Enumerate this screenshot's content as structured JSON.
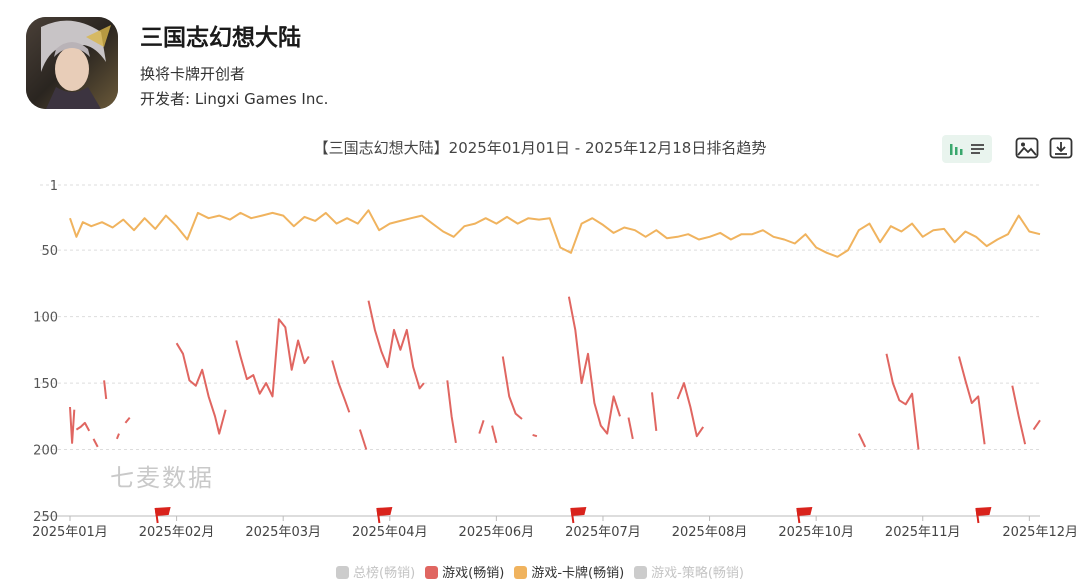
{
  "app": {
    "name": "三国志幻想大陆",
    "subtitle": "换将卡牌开创者",
    "developer": "开发者: Lingxi Games Inc."
  },
  "watermark": "七麦数据",
  "toolbar": {
    "icons": [
      "bar-chart-icon",
      "list-icon",
      "image-export-icon",
      "download-icon"
    ],
    "active_color": "#3aa76d"
  },
  "colors": {
    "game_grossing": "#e06661",
    "card_grossing": "#f0b35e",
    "disabled": "#cccccc",
    "flag": "#d9231c"
  },
  "chart_data": {
    "type": "line",
    "title": "【三国志幻想大陆】2025年01月01日 - 2025年12月18日排名趋势",
    "y_inverted": true,
    "ylim": [
      1,
      250
    ],
    "y_ticks": [
      1,
      50,
      100,
      150,
      200,
      250
    ],
    "y_tick_labels": [
      "1",
      "50",
      "100",
      "150",
      "200",
      "250"
    ],
    "grid": "horizontal dashed",
    "x_tick_labels": [
      "2025年01月",
      "2025年02月",
      "2025年03月",
      "2025年04月",
      "2025年06月",
      "2025年07月",
      "2025年08月",
      "2025年10月",
      "2025年11月",
      "2025年12月"
    ],
    "x_tick_index": [
      0,
      5,
      10,
      15,
      20,
      25,
      30,
      35,
      40,
      45
    ],
    "annotation_flag_index": [
      4.3,
      14.7,
      23.8,
      34.4,
      42.8
    ],
    "legend": [
      {
        "label": "总榜(畅销)",
        "enabled": false,
        "color": "#cccccc"
      },
      {
        "label": "游戏(畅销)",
        "enabled": true,
        "color": "#e06661"
      },
      {
        "label": "游戏-卡牌(畅销)",
        "enabled": true,
        "color": "#f0b35e"
      },
      {
        "label": "游戏-策略(畅销)",
        "enabled": false,
        "color": "#cccccc"
      }
    ],
    "series": [
      {
        "name": "游戏-卡牌(畅销)",
        "color": "#f0b35e",
        "points": [
          [
            0,
            26
          ],
          [
            0.3,
            40
          ],
          [
            0.6,
            29
          ],
          [
            1,
            32
          ],
          [
            1.5,
            29
          ],
          [
            2,
            33
          ],
          [
            2.5,
            27
          ],
          [
            3,
            35
          ],
          [
            3.5,
            26
          ],
          [
            4,
            34
          ],
          [
            4.5,
            24
          ],
          [
            5,
            32
          ],
          [
            5.5,
            42
          ],
          [
            6,
            22
          ],
          [
            6.5,
            26
          ],
          [
            7,
            24
          ],
          [
            7.5,
            27
          ],
          [
            8,
            22
          ],
          [
            8.5,
            26
          ],
          [
            9,
            24
          ],
          [
            9.5,
            22
          ],
          [
            10,
            24
          ],
          [
            10.5,
            32
          ],
          [
            11,
            25
          ],
          [
            11.5,
            28
          ],
          [
            12,
            22
          ],
          [
            12.5,
            30
          ],
          [
            13,
            26
          ],
          [
            13.5,
            30
          ],
          [
            14,
            20
          ],
          [
            14.5,
            35
          ],
          [
            15,
            30
          ],
          [
            15.5,
            28
          ],
          [
            16,
            26
          ],
          [
            16.5,
            24
          ],
          [
            17,
            30
          ],
          [
            17.5,
            36
          ],
          [
            18,
            40
          ],
          [
            18.5,
            32
          ],
          [
            19,
            30
          ],
          [
            19.5,
            26
          ],
          [
            20,
            30
          ],
          [
            20.5,
            25
          ],
          [
            21,
            30
          ],
          [
            21.5,
            26
          ],
          [
            22,
            27
          ],
          [
            22.5,
            26
          ],
          [
            23,
            48
          ],
          [
            23.5,
            52
          ],
          [
            24,
            30
          ],
          [
            24.5,
            26
          ],
          [
            25,
            31
          ],
          [
            25.5,
            37
          ],
          [
            26,
            33
          ],
          [
            26.5,
            35
          ],
          [
            27,
            40
          ],
          [
            27.5,
            35
          ],
          [
            28,
            41
          ],
          [
            28.5,
            40
          ],
          [
            29,
            38
          ],
          [
            29.5,
            42
          ],
          [
            30,
            40
          ],
          [
            30.5,
            37
          ],
          [
            31,
            42
          ],
          [
            31.5,
            38
          ],
          [
            32,
            38
          ],
          [
            32.5,
            35
          ],
          [
            33,
            40
          ],
          [
            33.5,
            42
          ],
          [
            34,
            45
          ],
          [
            34.5,
            38
          ],
          [
            35,
            48
          ],
          [
            35.5,
            52
          ],
          [
            36,
            55
          ],
          [
            36.5,
            50
          ],
          [
            37,
            35
          ],
          [
            37.5,
            30
          ],
          [
            38,
            44
          ],
          [
            38.5,
            32
          ],
          [
            39,
            36
          ],
          [
            39.5,
            30
          ],
          [
            40,
            40
          ],
          [
            40.5,
            35
          ],
          [
            41,
            34
          ],
          [
            41.5,
            44
          ],
          [
            42,
            36
          ],
          [
            42.5,
            40
          ],
          [
            43,
            47
          ],
          [
            43.5,
            42
          ],
          [
            44,
            38
          ],
          [
            44.5,
            24
          ],
          [
            45,
            36
          ],
          [
            45.5,
            38
          ]
        ]
      },
      {
        "name": "游戏(畅销)",
        "color": "#e06661",
        "segments": [
          [
            [
              0,
              168
            ],
            [
              0.1,
              195
            ],
            [
              0.2,
              170
            ]
          ],
          [
            [
              0.3,
              185
            ],
            [
              0.5,
              183
            ],
            [
              0.7,
              180
            ],
            [
              0.9,
              186
            ]
          ],
          [
            [
              1.1,
              192
            ],
            [
              1.3,
              198
            ]
          ],
          [
            [
              1.6,
              148
            ],
            [
              1.7,
              162
            ]
          ],
          [
            [
              2.2,
              192
            ],
            [
              2.3,
              188
            ]
          ],
          [
            [
              2.6,
              180
            ],
            [
              2.8,
              176
            ]
          ],
          [
            [
              5,
              120
            ],
            [
              5.3,
              128
            ],
            [
              5.6,
              148
            ],
            [
              5.9,
              152
            ],
            [
              6.2,
              140
            ],
            [
              6.5,
              160
            ],
            [
              6.8,
              175
            ],
            [
              7.0,
              188
            ],
            [
              7.3,
              170
            ]
          ],
          [
            [
              7.8,
              118
            ],
            [
              8.0,
              130
            ],
            [
              8.3,
              147
            ],
            [
              8.6,
              144
            ],
            [
              8.9,
              158
            ],
            [
              9.2,
              150
            ],
            [
              9.5,
              160
            ],
            [
              9.8,
              102
            ],
            [
              10.1,
              108
            ],
            [
              10.4,
              140
            ],
            [
              10.7,
              118
            ],
            [
              11.0,
              135
            ],
            [
              11.2,
              130
            ]
          ],
          [
            [
              12.3,
              133
            ],
            [
              12.6,
              150
            ],
            [
              12.9,
              163
            ],
            [
              13.1,
              172
            ]
          ],
          [
            [
              13.6,
              185
            ],
            [
              13.9,
              200
            ]
          ],
          [
            [
              14.0,
              88
            ],
            [
              14.3,
              110
            ],
            [
              14.6,
              126
            ],
            [
              14.9,
              138
            ],
            [
              15.2,
              110
            ],
            [
              15.5,
              125
            ],
            [
              15.8,
              110
            ],
            [
              16.1,
              138
            ],
            [
              16.4,
              154
            ],
            [
              16.6,
              150
            ]
          ],
          [
            [
              17.7,
              148
            ],
            [
              17.9,
              175
            ],
            [
              18.1,
              195
            ]
          ],
          [
            [
              19.2,
              188
            ],
            [
              19.4,
              178
            ]
          ],
          [
            [
              19.8,
              182
            ],
            [
              20.0,
              195
            ]
          ],
          [
            [
              20.3,
              130
            ],
            [
              20.6,
              160
            ],
            [
              20.9,
              173
            ],
            [
              21.2,
              177
            ]
          ],
          [
            [
              21.7,
              189
            ],
            [
              21.9,
              190
            ]
          ],
          [
            [
              23.4,
              85
            ],
            [
              23.7,
              110
            ],
            [
              24.0,
              150
            ],
            [
              24.3,
              128
            ],
            [
              24.6,
              165
            ],
            [
              24.9,
              182
            ],
            [
              25.2,
              188
            ],
            [
              25.5,
              160
            ],
            [
              25.8,
              175
            ]
          ],
          [
            [
              26.2,
              176
            ],
            [
              26.4,
              192
            ]
          ],
          [
            [
              27.3,
              157
            ],
            [
              27.5,
              186
            ]
          ],
          [
            [
              28.5,
              162
            ],
            [
              28.8,
              150
            ],
            [
              29.1,
              168
            ],
            [
              29.4,
              190
            ],
            [
              29.7,
              183
            ]
          ],
          [
            [
              37.0,
              188
            ],
            [
              37.3,
              198
            ]
          ],
          [
            [
              38.3,
              128
            ],
            [
              38.6,
              150
            ],
            [
              38.9,
              163
            ],
            [
              39.2,
              166
            ],
            [
              39.5,
              158
            ],
            [
              39.8,
              200
            ]
          ],
          [
            [
              41.7,
              130
            ],
            [
              42.0,
              148
            ],
            [
              42.3,
              165
            ],
            [
              42.6,
              160
            ],
            [
              42.9,
              196
            ]
          ],
          [
            [
              44.2,
              152
            ],
            [
              44.5,
              175
            ],
            [
              44.8,
              196
            ]
          ],
          [
            [
              45.2,
              185
            ],
            [
              45.5,
              178
            ]
          ]
        ]
      }
    ]
  }
}
